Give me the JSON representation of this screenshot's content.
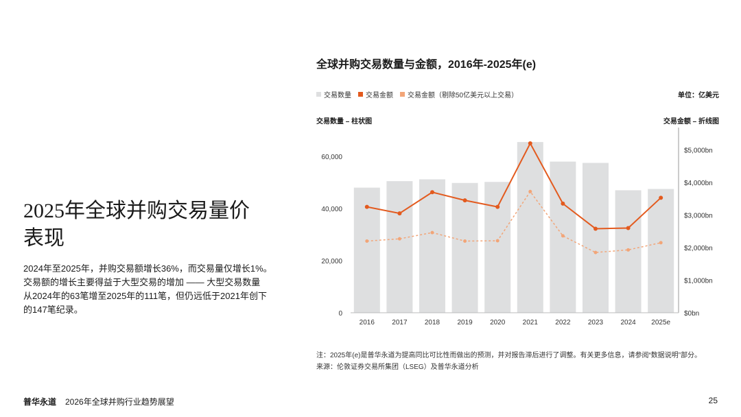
{
  "section": {
    "heading_line1": "2025年全球并购交易量价",
    "heading_line2": "表现",
    "body_line1": "2024年至2025年，并购交易额增长36%，而交易量仅增长1%。",
    "body_line2": "交易额的增长主要得益于大型交易的增加 —— 大型交易数量",
    "body_line3": "从2024年的63笔增至2025年的111笔，但仍远低于2021年创下",
    "body_line4": "的147笔纪录。"
  },
  "chart_header": {
    "unit_label": "单位：亿美元",
    "left_axis_name": "交易数量 – 柱状图",
    "right_axis_name": "交易金额 – 折线图"
  },
  "notes": {
    "note": "注：2025年(e)是普华永道为提高同比可比性而做出的预测，并对报告滞后进行了调整。有关更多信息，请参阅“数据说明”部分。",
    "source": "来源：伦敦证券交易所集团（LSEG）及普华永道分析"
  },
  "footer": {
    "brand": "普华永道",
    "report_title": "2026年全球并购行业趋势展望",
    "page_number": "25"
  },
  "colors": {
    "bar": "#dedfe0",
    "value_line": "#e35a1e",
    "adjusted_line": "#f2a578"
  },
  "chart_data": {
    "type": "bar",
    "title": "全球并购交易数量与金额，2016年-2025年(e)",
    "categories": [
      "2016",
      "2017",
      "2018",
      "2019",
      "2020",
      "2021",
      "2022",
      "2023",
      "2024",
      "2025e"
    ],
    "series": [
      {
        "name": "交易数量",
        "type": "bar",
        "axis": "left",
        "values": [
          48000,
          50500,
          51200,
          49800,
          50200,
          65500,
          58000,
          57500,
          47000,
          47500
        ]
      },
      {
        "name": "交易金额",
        "type": "line",
        "axis": "right",
        "values": [
          3250,
          3050,
          3700,
          3450,
          3250,
          5200,
          3350,
          2580,
          2600,
          3530
        ]
      },
      {
        "name": "交易金额（剔除50亿美元以上交易）",
        "type": "line",
        "style": "dashed",
        "axis": "right",
        "values": [
          2200,
          2270,
          2460,
          2200,
          2210,
          3720,
          2360,
          1850,
          1930,
          2150
        ]
      }
    ],
    "y_left": {
      "min": 0,
      "max": 70000,
      "ticks": [
        0,
        20000,
        40000,
        60000
      ],
      "tick_labels": [
        "0",
        "20,000",
        "40,000",
        "60,000"
      ]
    },
    "y_right": {
      "min": 0,
      "max": 5600,
      "ticks": [
        0,
        1000,
        2000,
        3000,
        4000,
        5000
      ],
      "tick_labels": [
        "$0bn",
        "$1,000bn",
        "$2,000bn",
        "$3,000bn",
        "$4,000bn",
        "$5,000bn"
      ]
    },
    "legend": [
      "交易数量",
      "交易金额",
      "交易金额（剔除50亿美元以上交易）"
    ],
    "grid": false,
    "legend_position": "top-left"
  }
}
